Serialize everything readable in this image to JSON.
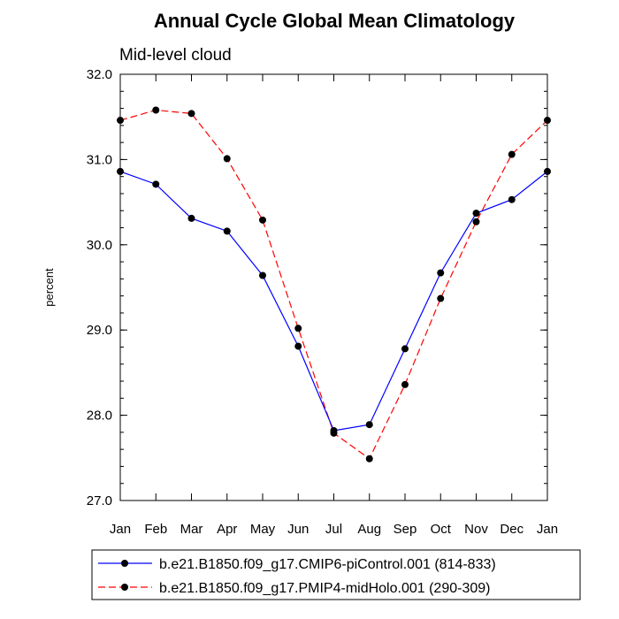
{
  "chart_data": {
    "type": "line",
    "title": "Annual Cycle Global Mean Climatology",
    "subtitle": "Mid-level cloud",
    "xlabel": "",
    "ylabel": "percent",
    "categories": [
      "Jan",
      "Feb",
      "Mar",
      "Apr",
      "May",
      "Jun",
      "Jul",
      "Aug",
      "Sep",
      "Oct",
      "Nov",
      "Dec",
      "Jan"
    ],
    "ylim": [
      27.0,
      32.0
    ],
    "yticks": [
      "27.0",
      "28.0",
      "29.0",
      "30.0",
      "31.0",
      "32.0"
    ],
    "grid": false,
    "legend_position": "bottom",
    "series": [
      {
        "name": "b.e21.B1850.f09_g17.CMIP6-piControl.001 (814-833)",
        "color": "#0000ff",
        "line_style": "solid",
        "values": [
          30.86,
          30.71,
          30.31,
          30.16,
          29.64,
          28.81,
          27.82,
          27.89,
          28.78,
          29.67,
          30.37,
          30.53,
          30.86
        ]
      },
      {
        "name": "b.e21.B1850.f09_g17.PMIP4-midHolo.001 (290-309)",
        "color": "#ff0000",
        "line_style": "dashed",
        "values": [
          31.46,
          31.58,
          31.54,
          31.01,
          30.29,
          29.02,
          27.79,
          27.49,
          28.36,
          29.37,
          30.27,
          31.06,
          31.46
        ]
      }
    ]
  }
}
